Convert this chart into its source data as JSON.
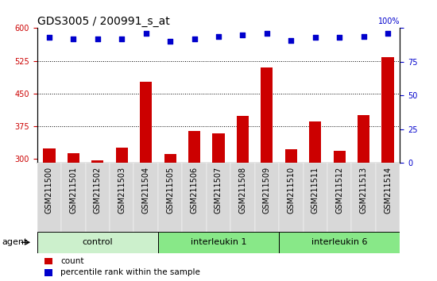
{
  "title": "GDS3005 / 200991_s_at",
  "samples": [
    "GSM211500",
    "GSM211501",
    "GSM211502",
    "GSM211503",
    "GSM211504",
    "GSM211505",
    "GSM211506",
    "GSM211507",
    "GSM211508",
    "GSM211509",
    "GSM211510",
    "GSM211511",
    "GSM211512",
    "GSM211513",
    "GSM211514"
  ],
  "counts": [
    323,
    313,
    296,
    325,
    476,
    310,
    363,
    358,
    398,
    510,
    322,
    385,
    318,
    400,
    533
  ],
  "percentile_ranks": [
    93,
    92,
    92,
    92,
    96,
    90,
    92,
    94,
    95,
    96,
    91,
    93,
    93,
    94,
    96
  ],
  "ylim_left": [
    290,
    600
  ],
  "ylim_right": [
    0,
    100
  ],
  "yticks_left": [
    300,
    375,
    450,
    525,
    600
  ],
  "yticks_right": [
    0,
    25,
    50,
    75,
    100
  ],
  "bar_color": "#cc0000",
  "dot_color": "#0000cc",
  "agent_label": "agent",
  "legend_count": "count",
  "legend_percentile": "percentile rank within the sample",
  "title_fontsize": 10,
  "tick_fontsize": 7,
  "group_label_fontsize": 8,
  "group_boundaries": [
    {
      "start": 0,
      "end": 5,
      "label": "control",
      "color": "#ccf0cc"
    },
    {
      "start": 5,
      "end": 10,
      "label": "interleukin 1",
      "color": "#88e888"
    },
    {
      "start": 10,
      "end": 15,
      "label": "interleukin 6",
      "color": "#88e888"
    }
  ],
  "grid_dotted_lines": [
    375,
    450,
    525
  ]
}
